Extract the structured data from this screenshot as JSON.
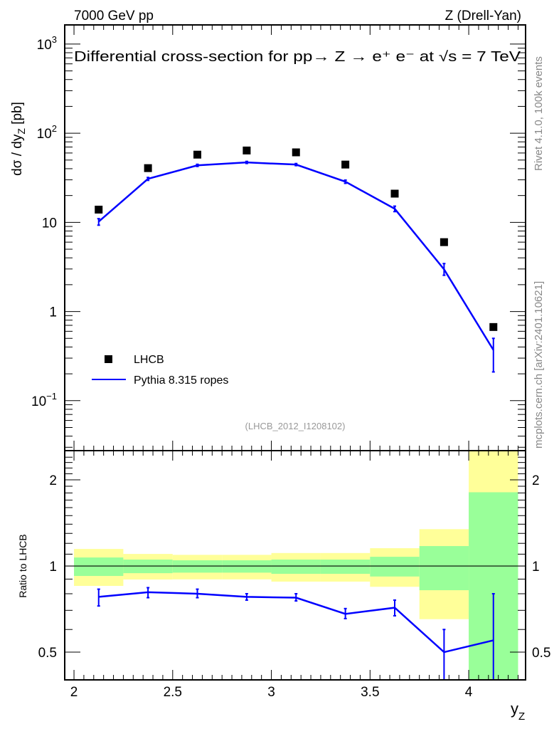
{
  "header": {
    "left_title": "7000 GeV pp",
    "right_title": "Z (Drell-Yan)"
  },
  "side_texts": {
    "rivet": "Rivet 4.1.0,  100k events",
    "mcplots": "mcplots.cern.ch [arXiv:2401.10621]"
  },
  "colors": {
    "data": "#000000",
    "mc": "#0000ff",
    "band_inner": "#99ff99",
    "band_outer": "#ffff99"
  },
  "chart_data": [
    {
      "type": "scatter",
      "title": "Differential cross-section for pp→  Z →  e⁺ e⁻ at √s = 7 TeV",
      "analysis_label": "(LHCB_2012_I1208102)",
      "xlabel": "y_Z",
      "ylabel": "dσ / dy_Z [pb]",
      "yscale": "log",
      "xlim": [
        1.953,
        4.288
      ],
      "ylim": [
        0.0275,
        1640
      ],
      "y_ticks": [
        {
          "value": 1000,
          "label": "10",
          "exp": "3"
        },
        {
          "value": 100,
          "label": "10",
          "exp": "2"
        },
        {
          "value": 10,
          "label": "10",
          "exp": ""
        },
        {
          "value": 1,
          "label": "1",
          "exp": ""
        },
        {
          "value": 0.1,
          "label": "10",
          "exp": "−1"
        }
      ],
      "legend": {
        "placement": "bottom-left",
        "entries": [
          "LHCB",
          "Pythia 8.315 ropes"
        ]
      },
      "x": [
        2.125,
        2.375,
        2.625,
        2.875,
        3.125,
        3.375,
        3.625,
        3.875,
        4.125
      ],
      "series": [
        {
          "name": "LHCB",
          "style": "markers",
          "values": [
            13.9,
            40.6,
            57.5,
            64,
            61,
            44.5,
            21,
            6.0,
            0.67
          ]
        },
        {
          "name": "Pythia 8.315 ropes",
          "style": "line",
          "values": [
            10.2,
            30.8,
            43.6,
            47,
            44.5,
            28.6,
            14.2,
            2.97,
            0.37
          ],
          "err_low": [
            9.3,
            29.6,
            42.4,
            45.8,
            43.3,
            27.4,
            13.2,
            2.55,
            0.21
          ],
          "err_high": [
            11.0,
            31.9,
            44.8,
            48.3,
            45.7,
            29.8,
            15.2,
            3.45,
            0.5
          ]
        }
      ]
    },
    {
      "type": "line",
      "ylabel": "Ratio to LHCB",
      "xlabel": "y_Z",
      "yscale": "log",
      "xlim": [
        1.953,
        4.288
      ],
      "ylim": [
        0.4,
        2.53
      ],
      "y_ticks": [
        2,
        1,
        0.5
      ],
      "x_ticks": [
        {
          "value": 2,
          "label": "2"
        },
        {
          "value": 2.5,
          "label": "2.5"
        },
        {
          "value": 3,
          "label": "3"
        },
        {
          "value": 3.5,
          "label": "3.5"
        },
        {
          "value": 4,
          "label": "4"
        }
      ],
      "bins": [
        [
          2.0,
          2.25
        ],
        [
          2.25,
          2.5
        ],
        [
          2.5,
          2.75
        ],
        [
          2.75,
          3.0
        ],
        [
          3.0,
          3.25
        ],
        [
          3.25,
          3.5
        ],
        [
          3.5,
          3.75
        ],
        [
          3.75,
          4.0
        ],
        [
          4.0,
          4.25
        ]
      ],
      "band_outer": {
        "high": [
          1.147,
          1.102,
          1.094,
          1.094,
          1.11,
          1.11,
          1.154,
          1.345,
          3.0
        ],
        "low": [
          0.852,
          0.897,
          0.898,
          0.898,
          0.882,
          0.882,
          0.846,
          0.652,
          0.2
        ]
      },
      "band_inner": {
        "high": [
          1.071,
          1.053,
          1.047,
          1.047,
          1.053,
          1.053,
          1.077,
          1.174,
          1.81
        ],
        "low": [
          0.923,
          0.944,
          0.948,
          0.948,
          0.939,
          0.939,
          0.919,
          0.823,
          0.3
        ]
      },
      "x": [
        2.125,
        2.375,
        2.625,
        2.875,
        3.125,
        3.375,
        3.625,
        3.875,
        4.125
      ],
      "series": [
        {
          "name": "Pythia 8.315 ropes / LHCB",
          "values": [
            0.78,
            0.81,
            0.8,
            0.78,
            0.775,
            0.68,
            0.715,
            0.5,
            0.55
          ],
          "err_low": [
            0.725,
            0.775,
            0.775,
            0.76,
            0.755,
            0.655,
            0.67,
            0.4,
            0.3
          ],
          "err_high": [
            0.83,
            0.84,
            0.83,
            0.8,
            0.8,
            0.71,
            0.76,
            0.6,
            0.8
          ]
        }
      ]
    }
  ]
}
